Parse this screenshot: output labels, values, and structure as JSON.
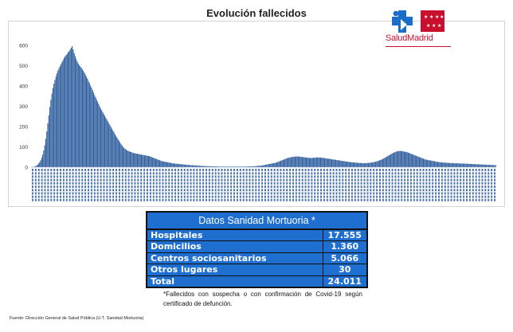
{
  "page": {
    "title": "Evolución fallecidos"
  },
  "logo": {
    "text": "SaludMadrid",
    "brand_red": "#c8102e",
    "brand_blue": "#1a6ec7"
  },
  "chart_data": {
    "type": "bar",
    "title": "Evolución fallecidos",
    "xlabel": "",
    "ylabel": "",
    "ylim": [
      0,
      600
    ],
    "yticks": [
      0,
      100,
      200,
      300,
      400,
      500,
      600
    ],
    "bar_color": "#2f5e9e",
    "grid": false,
    "categories_note": "daily dates from March 2020 to 2021 (tick labels illegible)",
    "values": [
      0,
      1,
      2,
      3,
      5,
      8,
      12,
      18,
      25,
      34,
      46,
      62,
      82,
      108,
      140,
      176,
      216,
      256,
      296,
      332,
      362,
      390,
      412,
      430,
      448,
      462,
      476,
      488,
      498,
      508,
      518,
      528,
      538,
      546,
      552,
      558,
      566,
      572,
      580,
      588,
      596,
      580,
      562,
      546,
      532,
      520,
      510,
      502,
      496,
      490,
      482,
      474,
      466,
      456,
      446,
      436,
      424,
      414,
      402,
      392,
      380,
      368,
      355,
      344,
      333,
      322,
      311,
      300,
      289,
      280,
      271,
      262,
      253,
      244,
      235,
      226,
      217,
      208,
      199,
      190,
      181,
      172,
      163,
      154,
      146,
      138,
      130,
      122,
      114,
      107,
      100,
      94,
      90,
      86,
      82,
      80,
      78,
      76,
      74,
      72,
      70,
      69,
      68,
      67,
      66,
      65,
      64,
      63,
      62,
      61,
      60,
      59,
      58,
      57,
      56,
      55,
      54,
      52,
      50,
      48,
      46,
      44,
      42,
      40,
      38,
      36,
      34,
      32,
      30,
      29,
      28,
      27,
      26,
      25,
      24,
      23,
      22,
      21,
      20,
      19,
      18,
      18,
      17,
      17,
      16,
      16,
      15,
      15,
      14,
      14,
      13,
      13,
      12,
      12,
      11,
      11,
      10,
      10,
      10,
      9,
      9,
      9,
      8,
      8,
      8,
      7,
      7,
      7,
      6,
      6,
      6,
      6,
      5,
      5,
      5,
      5,
      5,
      4,
      4,
      4,
      4,
      4,
      4,
      4,
      3,
      3,
      3,
      3,
      3,
      3,
      3,
      3,
      3,
      3,
      3,
      3,
      3,
      3,
      3,
      3,
      3,
      3,
      3,
      3,
      3,
      3,
      3,
      3,
      3,
      3,
      3,
      3,
      3,
      4,
      4,
      4,
      4,
      4,
      5,
      5,
      5,
      6,
      6,
      7,
      7,
      8,
      8,
      9,
      10,
      11,
      12,
      13,
      14,
      15,
      16,
      17,
      18,
      19,
      20,
      21,
      22,
      24,
      26,
      28,
      30,
      32,
      34,
      36,
      38,
      40,
      42,
      44,
      46,
      47,
      48,
      49,
      50,
      51,
      52,
      52,
      53,
      53,
      53,
      52,
      52,
      51,
      50,
      50,
      49,
      48,
      48,
      47,
      46,
      46,
      45,
      45,
      46,
      46,
      47,
      47,
      48,
      48,
      48,
      48,
      47,
      47,
      46,
      45,
      45,
      44,
      43,
      42,
      42,
      41,
      40,
      39,
      38,
      38,
      37,
      36,
      35,
      34,
      34,
      33,
      32,
      31,
      30,
      30,
      29,
      28,
      27,
      27,
      26,
      25,
      25,
      24,
      24,
      23,
      23,
      22,
      22,
      21,
      21,
      21,
      20,
      20,
      20,
      20,
      20,
      20,
      21,
      21,
      22,
      22,
      23,
      24,
      25,
      26,
      27,
      28,
      30,
      32,
      34,
      36,
      38,
      40,
      43,
      46,
      49,
      52,
      55,
      58,
      61,
      64,
      67,
      70,
      72,
      74,
      76,
      78,
      79,
      80,
      80,
      80,
      79,
      78,
      77,
      76,
      75,
      74,
      72,
      70,
      68,
      66,
      64,
      62,
      60,
      58,
      56,
      54,
      52,
      50,
      48,
      46,
      44,
      42,
      40,
      38,
      37,
      36,
      35,
      34,
      33,
      32,
      31,
      30,
      29,
      28,
      27,
      26,
      25,
      25,
      24,
      24,
      23,
      23,
      22,
      22,
      22,
      21,
      21,
      21,
      20,
      20,
      20,
      20,
      19,
      19,
      19,
      19,
      18,
      18,
      18,
      18,
      18,
      18,
      17,
      17,
      17,
      17,
      16,
      16,
      16,
      16,
      15,
      15,
      15,
      15,
      14,
      14,
      14,
      14,
      13,
      13,
      13,
      13,
      12,
      12,
      12,
      12,
      11,
      11,
      11,
      11,
      10,
      10,
      10
    ]
  },
  "table": {
    "header": "Datos Sanidad Mortuoria *",
    "rows": [
      {
        "label": "Hospitales",
        "value": "17.555"
      },
      {
        "label": "Domicilios",
        "value": "1.360"
      },
      {
        "label": "Centros sociosanitarios",
        "value": "5.066"
      },
      {
        "label": "Otros lugares",
        "value": "30"
      }
    ],
    "total": {
      "label": "Total",
      "value": "24.011"
    },
    "header_color": "#1f6fd1"
  },
  "footnote": "*Fallecidos con sospecha o con confirmación de Covid-19 según certificado de defunción.",
  "source": "Fuente: Dirección General de Salud Pública (U.T. Sanidad Mortuoria)"
}
